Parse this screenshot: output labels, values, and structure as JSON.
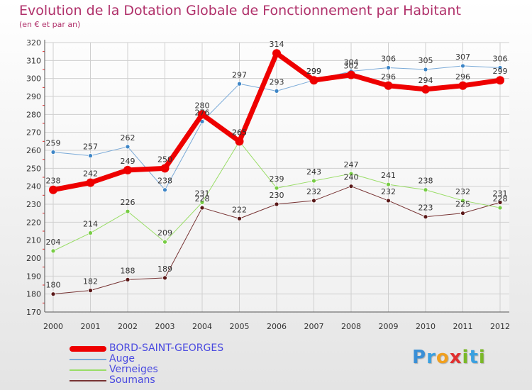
{
  "title": "Evolution de la Dotation Globale de Fonctionnement par Habitant",
  "subtitle": "(en € et par an)",
  "logo_text": "Proxiti",
  "chart_data": {
    "type": "line",
    "x": [
      "2000",
      "2001",
      "2002",
      "2003",
      "2004",
      "2005",
      "2006",
      "2007",
      "2008",
      "2009",
      "2010",
      "2011",
      "2012"
    ],
    "ylim": [
      170,
      320
    ],
    "yticks": [
      170,
      180,
      190,
      200,
      210,
      220,
      230,
      240,
      250,
      260,
      270,
      280,
      290,
      300,
      310,
      320
    ],
    "grid": true,
    "legend_position": "bottom-left",
    "series": [
      {
        "name": "BORD-SAINT-GEORGES",
        "color": "#ee0000",
        "width": 7,
        "values": [
          238,
          242,
          249,
          250,
          280,
          265,
          314,
          299,
          302,
          296,
          294,
          296,
          299
        ],
        "labels": [
          "238",
          "242",
          "249",
          "250",
          "280",
          "265",
          "314",
          "299",
          "302",
          "296",
          "294",
          "296",
          "299"
        ]
      },
      {
        "name": "Auge",
        "color": "#7aaad8",
        "marker": "#3d85c6",
        "width": 1,
        "values": [
          259,
          257,
          262,
          238,
          276,
          297,
          293,
          299,
          304,
          306,
          305,
          307,
          306
        ],
        "labels": [
          "259",
          "257",
          "262",
          "238",
          "276",
          "297",
          "293",
          "299",
          "304",
          "306",
          "305",
          "307",
          "306"
        ]
      },
      {
        "name": "Verneiges",
        "color": "#99dd66",
        "marker": "#77cc44",
        "width": 1,
        "values": [
          204,
          214,
          226,
          209,
          231,
          265,
          239,
          243,
          247,
          241,
          238,
          232,
          228
        ],
        "labels": [
          "204",
          "214",
          "226",
          "209",
          "231",
          "265",
          "239",
          "243",
          "247",
          "241",
          "238",
          "232",
          "228"
        ]
      },
      {
        "name": "Soumans",
        "color": "#773333",
        "marker": "#5a1818",
        "width": 1,
        "values": [
          180,
          182,
          188,
          189,
          228,
          222,
          230,
          232,
          240,
          232,
          223,
          225,
          231
        ],
        "labels": [
          "180",
          "182",
          "188",
          "189",
          "228",
          "222",
          "230",
          "232",
          "240",
          "232",
          "223",
          "225",
          "231"
        ]
      }
    ]
  }
}
